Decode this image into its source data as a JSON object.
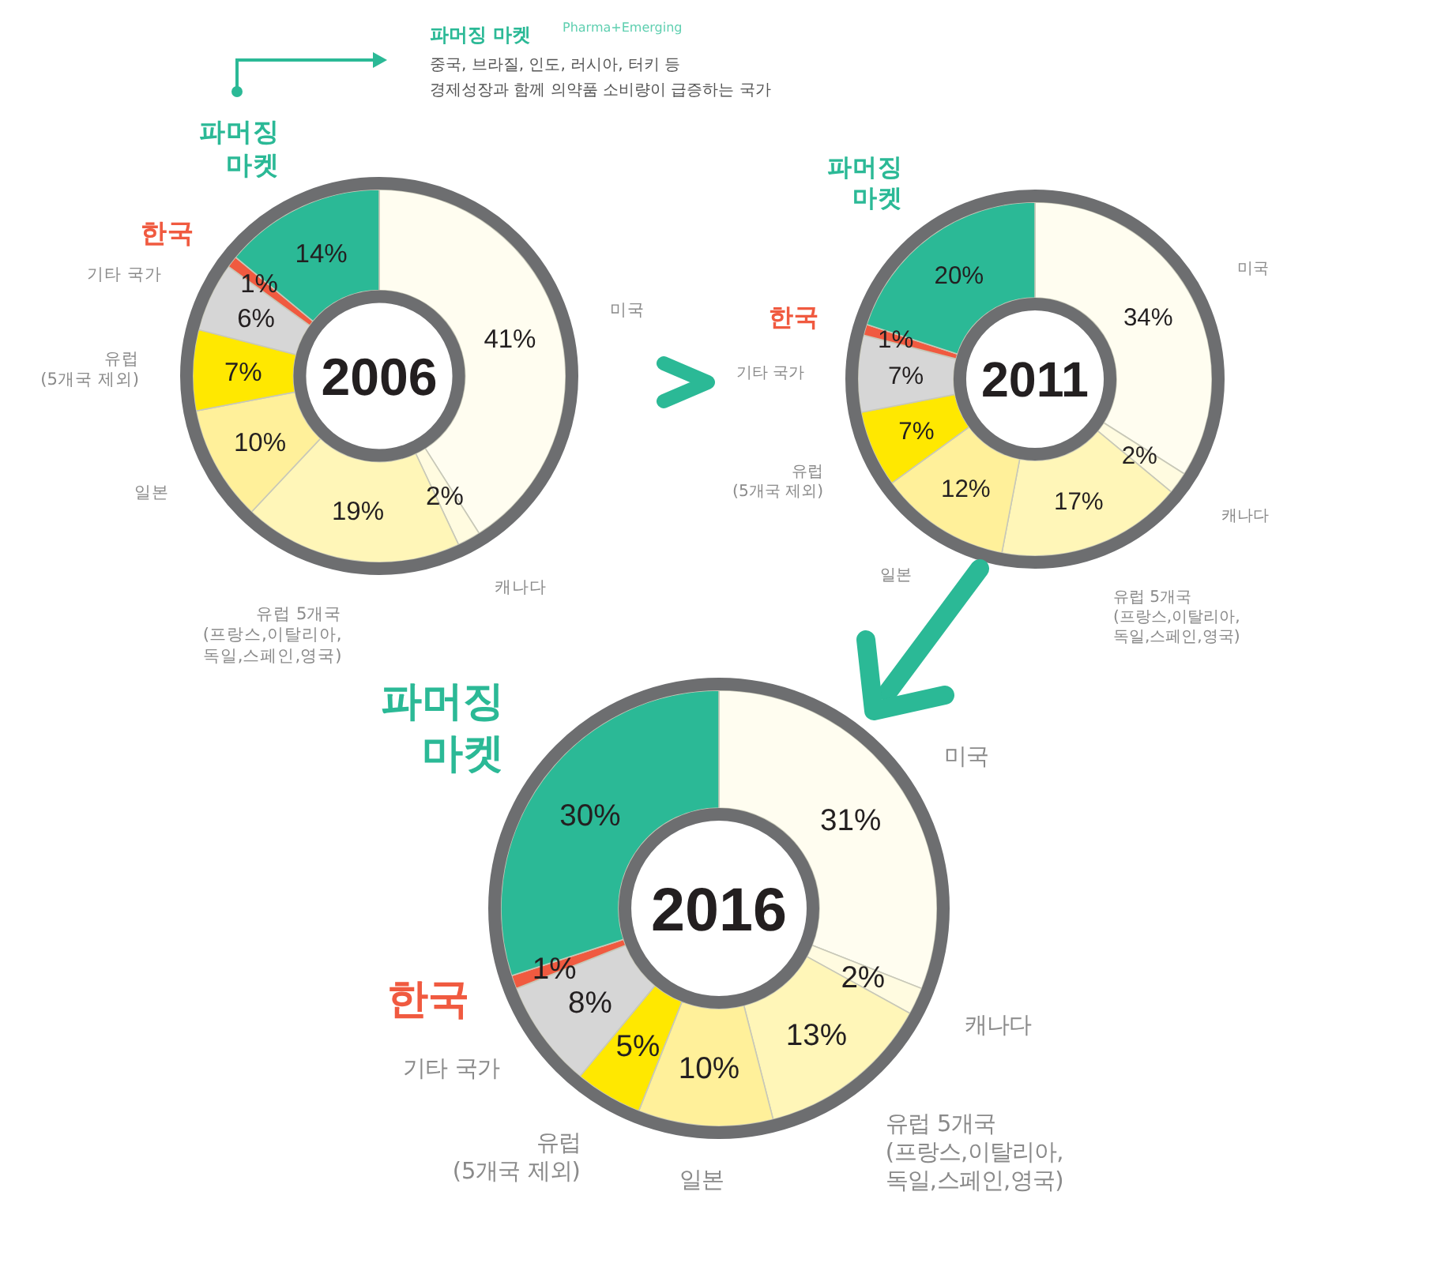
{
  "chart_data": [
    {
      "type": "donut",
      "title": "2006",
      "categories": [
        "미국",
        "캐나다",
        "유럽 5개국 (프랑스,이탈리아, 독일,스페인,영국)",
        "일본",
        "유럽 (5개국 제외)",
        "기타 국가",
        "한국",
        "파머징 마켓"
      ],
      "values": [
        41,
        2,
        19,
        10,
        7,
        6,
        1,
        14
      ],
      "value_labels": [
        "41%",
        "2%",
        "19%",
        "10%",
        "7%",
        "6%",
        "1%",
        "14%"
      ],
      "colors": [
        "#fffdf0",
        "#fffbe0",
        "#fff6b8",
        "#fff09a",
        "#ffe800",
        "#d6d6d6",
        "#f05a40",
        "#2bb996"
      ],
      "annotations": [
        "파머징 마켓",
        "Pharma+Emerging",
        "중국, 브라질, 인도, 러시아, 터키 등",
        "경제성장과 함께 의약품 소비량이 급증하는 국가"
      ]
    },
    {
      "type": "donut",
      "title": "2011",
      "categories": [
        "미국",
        "캐나다",
        "유럽 5개국 (프랑스,이탈리아, 독일,스페인,영국)",
        "일본",
        "유럽 (5개국 제외)",
        "기타 국가",
        "한국",
        "파머징 마켓"
      ],
      "values": [
        34,
        2,
        17,
        12,
        7,
        7,
        1,
        20
      ],
      "value_labels": [
        "34%",
        "2%",
        "17%",
        "12%",
        "7%",
        "7%",
        "1%",
        "20%"
      ],
      "colors": [
        "#fffdf0",
        "#fffbe0",
        "#fff6b8",
        "#fff09a",
        "#ffe800",
        "#d6d6d6",
        "#f05a40",
        "#2bb996"
      ]
    },
    {
      "type": "donut",
      "title": "2016",
      "categories": [
        "미국",
        "캐나다",
        "유럽 5개국 (프랑스,이탈리아, 독일,스페인,영국)",
        "일본",
        "유럽 (5개국 제외)",
        "기타 국가",
        "한국",
        "파머징 마켓"
      ],
      "values": [
        31,
        2,
        13,
        10,
        5,
        8,
        1,
        30
      ],
      "value_labels": [
        "31%",
        "2%",
        "13%",
        "10%",
        "5%",
        "8%",
        "1%",
        "30%"
      ],
      "colors": [
        "#fffdf0",
        "#fffbe0",
        "#fff6b8",
        "#fff09a",
        "#ffe800",
        "#d6d6d6",
        "#f05a40",
        "#2bb996"
      ]
    }
  ]
}
